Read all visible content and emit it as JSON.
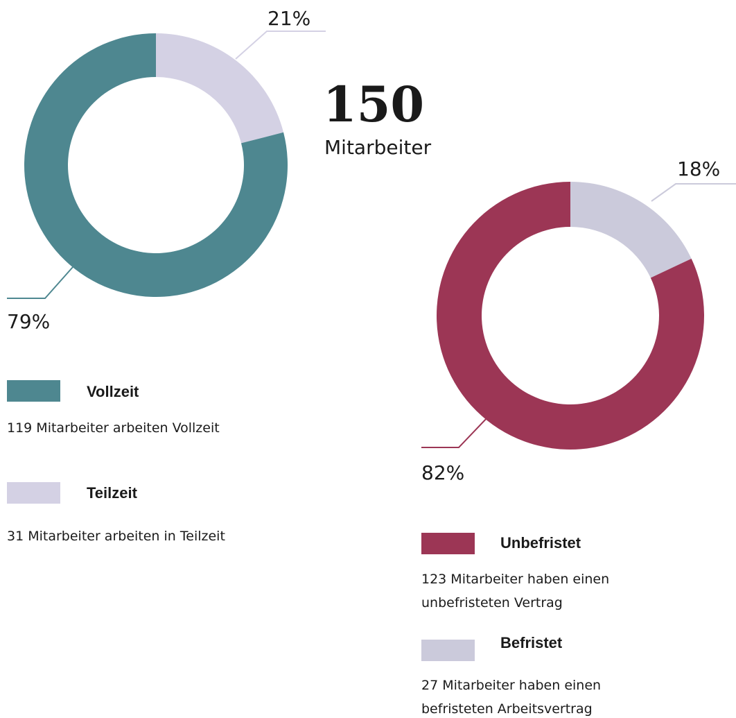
{
  "headline": {
    "number": "150",
    "label": "Mitarbeiter"
  },
  "chart_data": [
    {
      "type": "donut",
      "categories": [
        "Vollzeit",
        "Teilzeit"
      ],
      "values": [
        79,
        21
      ],
      "value_labels": [
        "79%",
        "21%"
      ],
      "colors": [
        "#4e8790",
        "#d4d1e4"
      ],
      "descriptions": [
        "119 Mitarbeiter arbeiten Vollzeit",
        "31 Mitarbeiter arbeiten in Teilzeit"
      ]
    },
    {
      "type": "donut",
      "categories": [
        "Unbefristet",
        "Befristet"
      ],
      "values": [
        82,
        18
      ],
      "value_labels": [
        "82%",
        "18%"
      ],
      "colors": [
        "#9c3655",
        "#cbcadb"
      ],
      "descriptions": [
        "123 Mitarbeiter haben einen unbefristeten Vertrag",
        "27 Mitarbeiter haben einen befristeten Arbeitsvertrag"
      ]
    }
  ]
}
